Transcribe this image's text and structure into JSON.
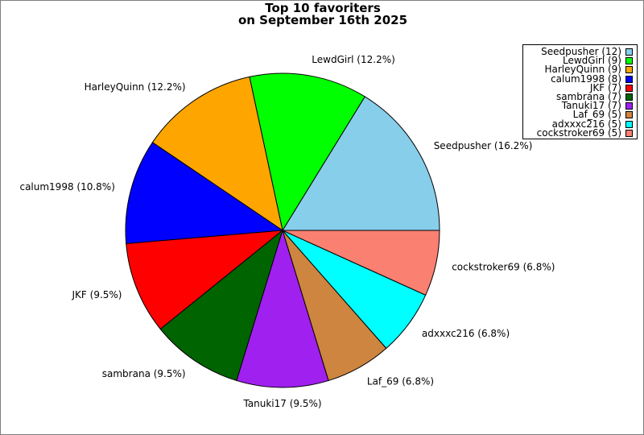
{
  "chart_data": {
    "type": "pie",
    "title": "Top 10 favoriters",
    "subtitle": "on September 16th 2025",
    "legend_position": "top-right",
    "slices": [
      {
        "name": "Seedpusher",
        "value": 12,
        "percent_label": "Seedpusher (16.2%)",
        "legend_label": "Seedpusher (12)",
        "color": "#87ceeb"
      },
      {
        "name": "LewdGirl",
        "value": 9,
        "percent_label": "LewdGirl (12.2%)",
        "legend_label": "LewdGirl (9)",
        "color": "#00ff00"
      },
      {
        "name": "HarleyQuinn",
        "value": 9,
        "percent_label": "HarleyQuinn (12.2%)",
        "legend_label": "HarleyQuinn (9)",
        "color": "#ffa500"
      },
      {
        "name": "calum1998",
        "value": 8,
        "percent_label": "calum1998 (10.8%)",
        "legend_label": "calum1998 (8)",
        "color": "#0000ff"
      },
      {
        "name": "JKF",
        "value": 7,
        "percent_label": "JKF (9.5%)",
        "legend_label": "JKF (7)",
        "color": "#ff0000"
      },
      {
        "name": "sambrana",
        "value": 7,
        "percent_label": "sambrana (9.5%)",
        "legend_label": "sambrana (7)",
        "color": "#006400"
      },
      {
        "name": "Tanuki17",
        "value": 7,
        "percent_label": "Tanuki17 (9.5%)",
        "legend_label": "Tanuki17 (7)",
        "color": "#a020f0"
      },
      {
        "name": "Laf_69",
        "value": 5,
        "percent_label": "Laf_69 (6.8%)",
        "legend_label": "Laf_69 (5)",
        "color": "#cd853f"
      },
      {
        "name": "adxxxc216",
        "value": 5,
        "percent_label": "adxxxc216 (6.8%)",
        "legend_label": "adxxxc216 (5)",
        "color": "#00ffff"
      },
      {
        "name": "cockstroker69",
        "value": 5,
        "percent_label": "cockstroker69 (6.8%)",
        "legend_label": "cockstroker69 (5)",
        "color": "#fa8072"
      }
    ]
  }
}
